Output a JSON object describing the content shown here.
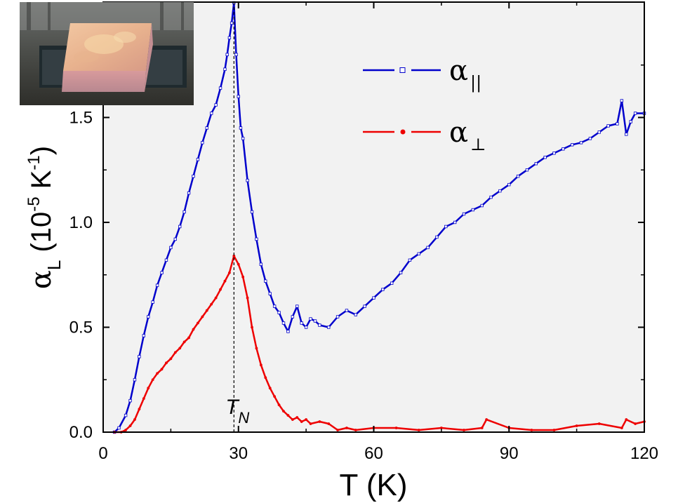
{
  "chart_data": {
    "type": "line",
    "xlabel": "T (K)",
    "ylabel_main": "α",
    "ylabel_sub": "L",
    "ylabel_units_prefix": " (10",
    "ylabel_units_exp1": "-5",
    "ylabel_units_mid": " K",
    "ylabel_units_exp2": "-1",
    "ylabel_units_suffix": ")",
    "xlim": [
      0,
      120
    ],
    "ylim": [
      0.0,
      2.05
    ],
    "xticks": [
      "0",
      "30",
      "60",
      "90",
      "120"
    ],
    "xtick_values": [
      0,
      30,
      60,
      90,
      120
    ],
    "yticks": [
      "0.0",
      "0.5",
      "1.0",
      "1.5"
    ],
    "ytick_values": [
      0.0,
      0.5,
      1.0,
      1.5
    ],
    "plot_background": "#f2f2f2",
    "grid": false,
    "legend_position": "top-right",
    "annotation": {
      "label": "T",
      "label_sub": "N",
      "x": 29,
      "line_style": "dashed"
    },
    "series": [
      {
        "name": "α",
        "name_sub": "||",
        "color": "#0000cc",
        "marker": "open-square",
        "x": [
          2.5,
          3.5,
          5,
          6,
          7,
          8,
          9,
          10,
          11,
          12,
          13,
          14,
          15,
          16,
          17,
          18,
          19,
          20,
          21,
          22,
          23,
          24,
          25,
          26,
          27,
          27.5,
          28,
          28.5,
          29,
          29.5,
          30,
          30.5,
          31,
          32,
          33,
          34,
          35,
          36,
          37,
          38,
          39,
          40,
          41,
          42,
          43,
          44,
          45,
          46,
          47,
          48,
          50,
          52,
          54,
          56,
          58,
          60,
          62,
          64,
          66,
          68,
          70,
          72,
          74,
          76,
          78,
          80,
          82,
          84,
          86,
          88,
          90,
          92,
          94,
          96,
          98,
          100,
          102,
          104,
          106,
          108,
          110,
          112,
          114,
          115,
          116,
          117,
          118,
          120
        ],
        "values": [
          0.0,
          0.02,
          0.08,
          0.15,
          0.25,
          0.36,
          0.46,
          0.55,
          0.62,
          0.7,
          0.76,
          0.82,
          0.88,
          0.92,
          0.98,
          1.05,
          1.14,
          1.22,
          1.3,
          1.38,
          1.45,
          1.52,
          1.56,
          1.64,
          1.73,
          1.8,
          1.88,
          1.95,
          2.15,
          1.8,
          1.6,
          1.45,
          1.4,
          1.2,
          1.05,
          0.92,
          0.8,
          0.72,
          0.66,
          0.6,
          0.57,
          0.52,
          0.48,
          0.55,
          0.6,
          0.52,
          0.5,
          0.54,
          0.53,
          0.51,
          0.5,
          0.55,
          0.58,
          0.56,
          0.6,
          0.64,
          0.68,
          0.71,
          0.76,
          0.82,
          0.85,
          0.88,
          0.93,
          0.98,
          1.0,
          1.04,
          1.06,
          1.08,
          1.12,
          1.15,
          1.18,
          1.22,
          1.25,
          1.28,
          1.31,
          1.33,
          1.35,
          1.37,
          1.38,
          1.4,
          1.43,
          1.46,
          1.47,
          1.58,
          1.42,
          1.48,
          1.52,
          1.52
        ]
      },
      {
        "name": "α",
        "name_sub": "⊥",
        "color": "#ee0000",
        "marker": "filled-circle",
        "x": [
          2.5,
          4,
          5,
          6,
          7,
          8,
          9,
          10,
          11,
          12,
          13,
          14,
          15,
          16,
          17,
          18,
          19,
          20,
          21,
          22,
          23,
          24,
          25,
          26,
          27,
          28,
          29,
          30,
          31,
          32,
          33,
          34,
          35,
          36,
          37,
          38,
          39,
          40,
          41,
          42,
          43,
          44,
          45,
          46,
          48,
          50,
          52,
          54,
          56,
          60,
          65,
          70,
          75,
          80,
          84,
          85,
          90,
          95,
          100,
          105,
          110,
          115,
          116,
          118,
          120
        ],
        "values": [
          0.0,
          0.0,
          0.01,
          0.03,
          0.06,
          0.11,
          0.16,
          0.21,
          0.25,
          0.28,
          0.3,
          0.33,
          0.35,
          0.38,
          0.4,
          0.43,
          0.45,
          0.49,
          0.52,
          0.55,
          0.58,
          0.61,
          0.64,
          0.68,
          0.72,
          0.76,
          0.84,
          0.8,
          0.74,
          0.64,
          0.5,
          0.4,
          0.32,
          0.26,
          0.21,
          0.17,
          0.13,
          0.1,
          0.08,
          0.06,
          0.07,
          0.05,
          0.06,
          0.04,
          0.05,
          0.04,
          0.01,
          0.02,
          0.01,
          0.02,
          0.02,
          0.01,
          0.02,
          0.01,
          0.02,
          0.06,
          0.02,
          0.01,
          0.01,
          0.03,
          0.04,
          0.02,
          0.06,
          0.04,
          0.05
        ]
      }
    ]
  }
}
